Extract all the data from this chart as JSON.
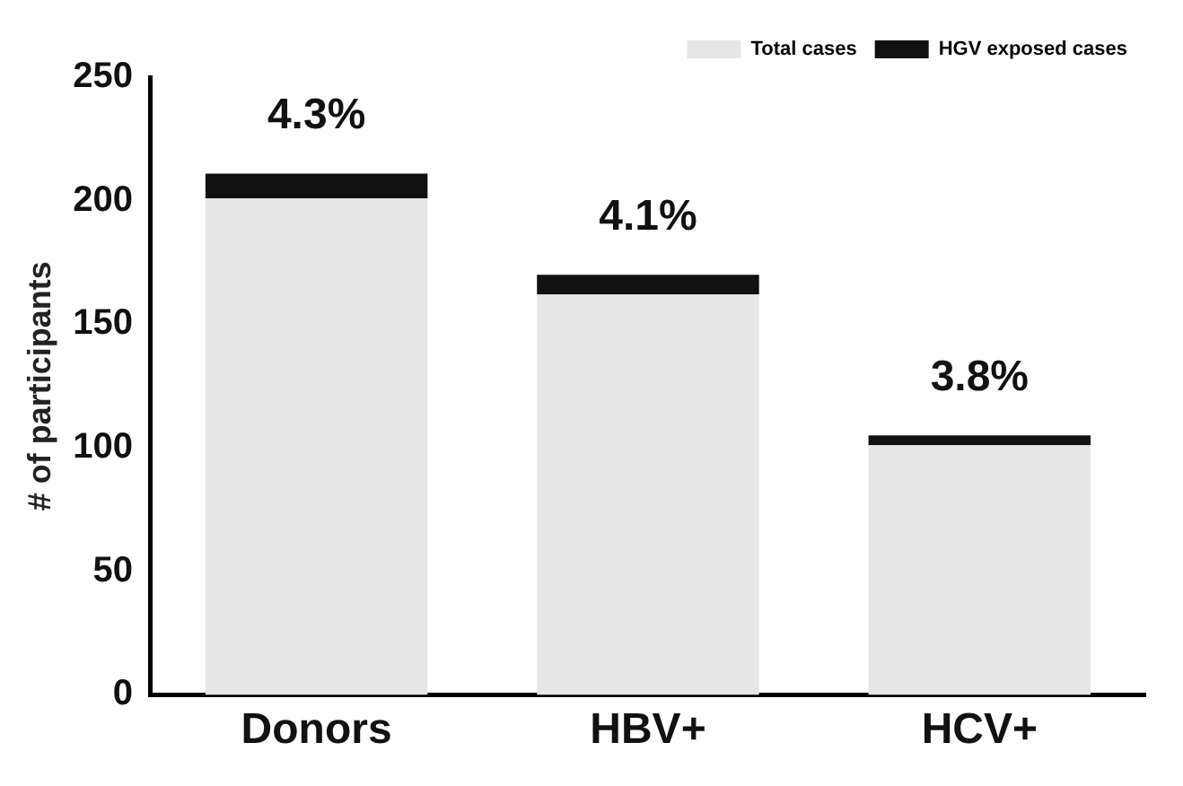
{
  "chart_data": {
    "type": "bar",
    "stacked": true,
    "ylabel": "# of participants",
    "categories": [
      "Donors",
      "HBV+",
      "HCV+"
    ],
    "series": [
      {
        "name": "Total cases",
        "color": "#e6e6e6",
        "values": [
          201,
          162,
          101
        ]
      },
      {
        "name": "HGV exposed cases",
        "color": "#111111",
        "values": [
          10,
          8,
          4
        ]
      }
    ],
    "ylim": [
      0,
      250
    ],
    "yticks": [
      0,
      50,
      100,
      150,
      200,
      250
    ],
    "grid": false,
    "legend": "top right",
    "annotations": [
      "4.3%",
      "4.1%",
      "3.8%"
    ]
  }
}
